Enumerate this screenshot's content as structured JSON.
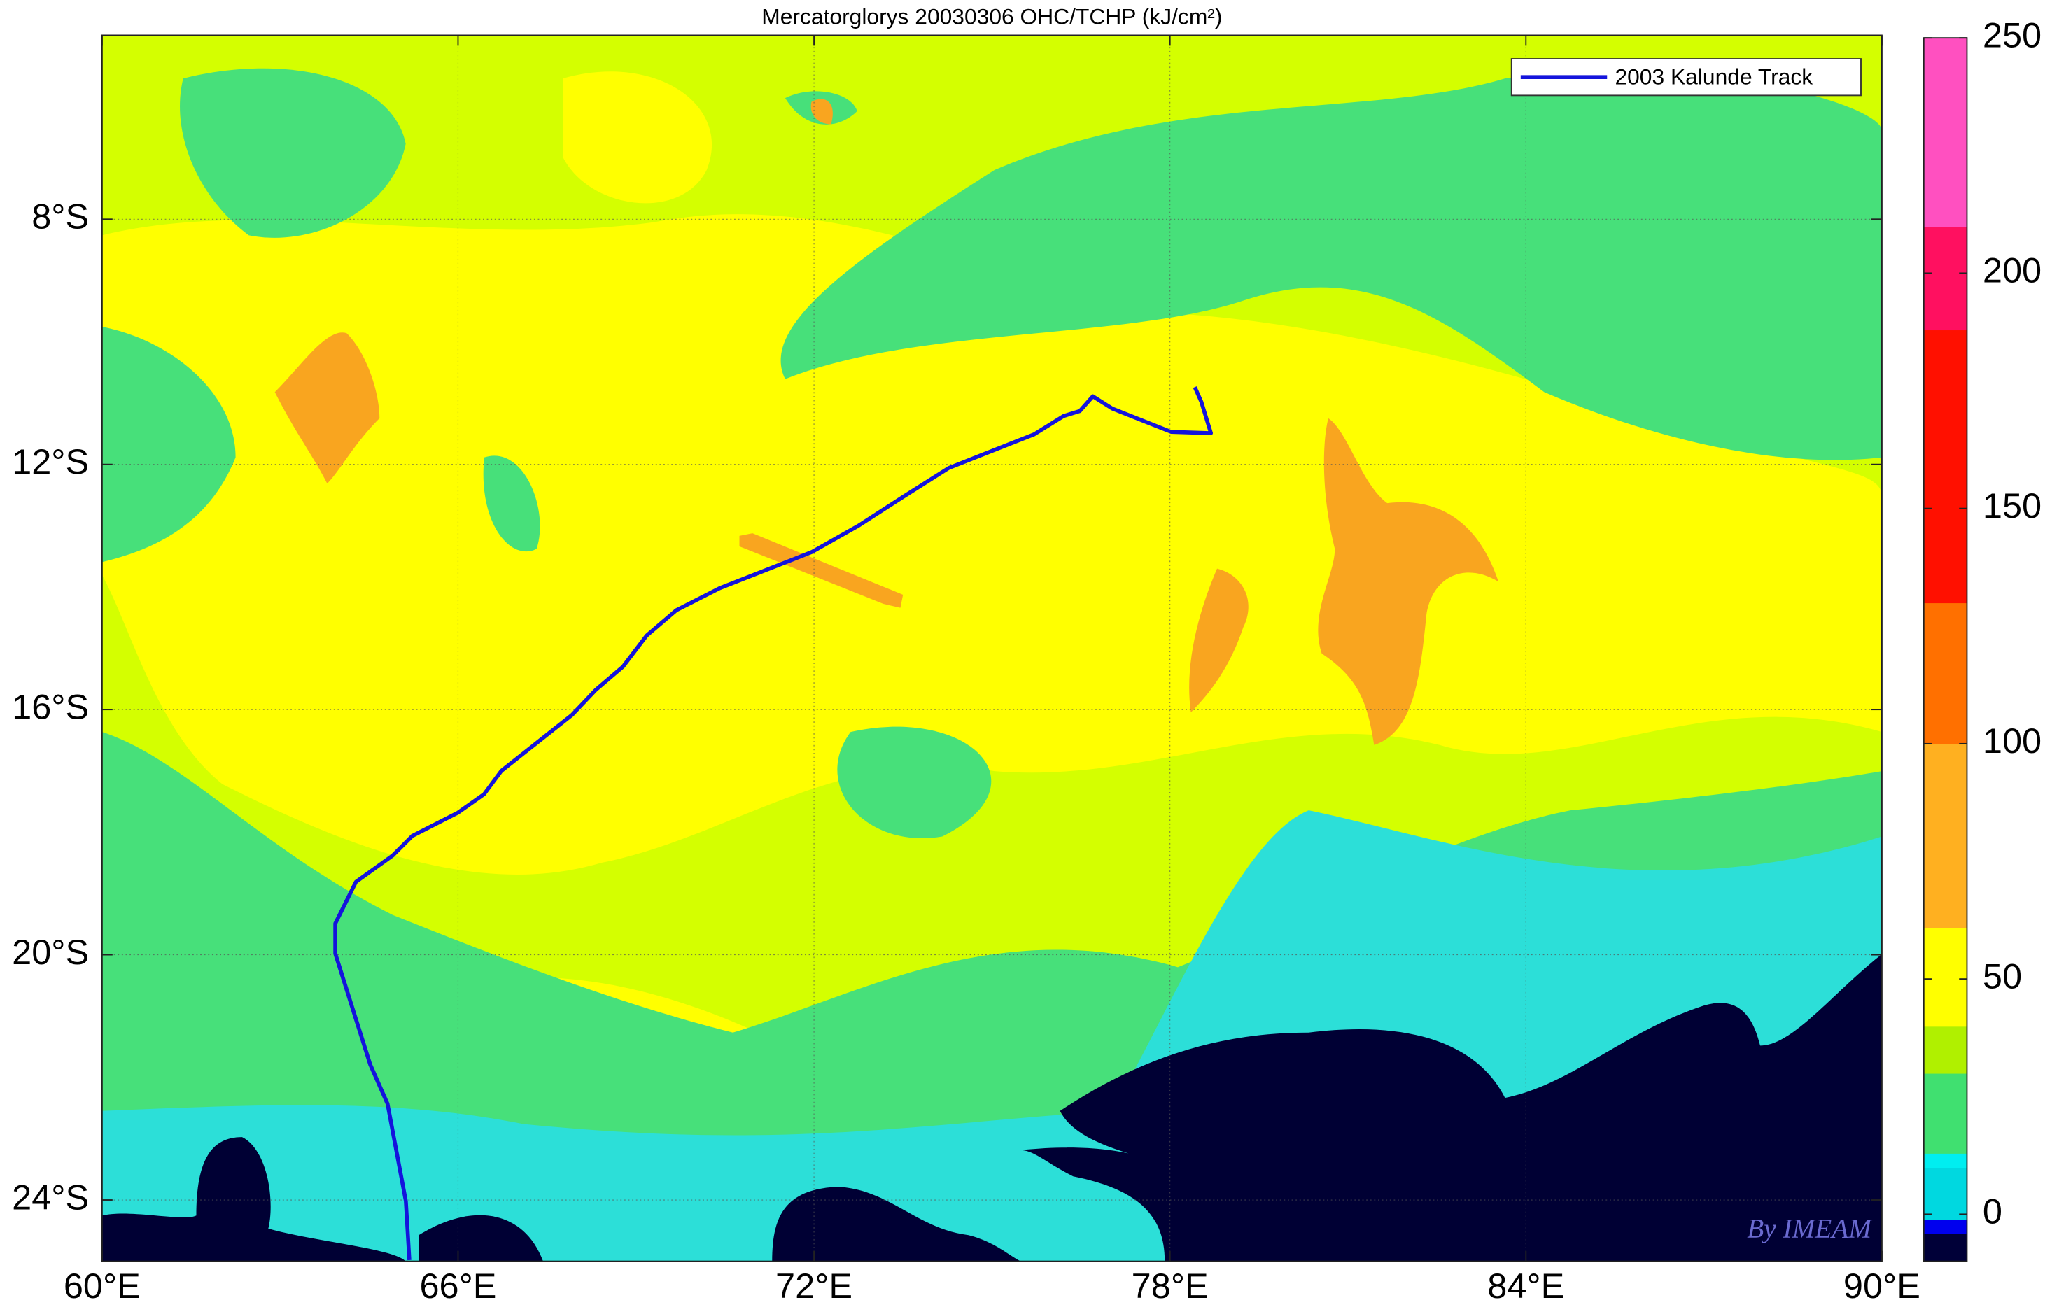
{
  "chart_data": {
    "type": "map",
    "title": "Mercatorglorys 20030306 OHC/TCHP (kJ/cm²)",
    "annotation": "By IMEAM",
    "xlim": [
      60,
      90
    ],
    "ylim": [
      -25,
      -5
    ],
    "xticks": [
      {
        "value": 60,
        "label": "60°E"
      },
      {
        "value": 66,
        "label": "66°E"
      },
      {
        "value": 72,
        "label": "72°E"
      },
      {
        "value": 78,
        "label": "78°E"
      },
      {
        "value": 84,
        "label": "84°E"
      },
      {
        "value": 90,
        "label": "90°E"
      }
    ],
    "yticks": [
      {
        "value": -8,
        "label": "8°S"
      },
      {
        "value": -12,
        "label": "12°S"
      },
      {
        "value": -16,
        "label": "16°S"
      },
      {
        "value": -20,
        "label": "20°S"
      },
      {
        "value": -24,
        "label": "24°S"
      }
    ],
    "grid": true,
    "legend": "upper right",
    "series": [
      {
        "name": "2003 Kalunde Track",
        "color": "#1414dc",
        "x": [
          65.18,
          65.12,
          64.81,
          64.52,
          63.93,
          63.93,
          64.28,
          64.9,
          65.23,
          66.0,
          66.44,
          66.73,
          67.92,
          68.32,
          68.78,
          69.18,
          69.68,
          70.41,
          71.96,
          72.75,
          73.5,
          74.27,
          75.71,
          76.21,
          76.48,
          76.7,
          77.03,
          78.02,
          78.69,
          78.53,
          78.42
        ],
        "values": [
          -24.98,
          -24.02,
          -22.43,
          -21.79,
          -19.98,
          -19.49,
          -18.81,
          -18.38,
          -18.06,
          -17.68,
          -17.38,
          -17.0,
          -16.09,
          -15.68,
          -15.3,
          -14.79,
          -14.38,
          -14.02,
          -13.43,
          -13.0,
          -12.53,
          -12.06,
          -11.51,
          -11.21,
          -11.13,
          -10.89,
          -11.09,
          -11.47,
          -11.49,
          -10.98,
          -10.74
        ]
      }
    ],
    "colorbar": {
      "clim": [
        -10,
        250
      ],
      "ticks": [
        0,
        50,
        100,
        150,
        200,
        250
      ],
      "stops": [
        {
          "value": -10,
          "color": "#000038"
        },
        {
          "value": -4,
          "color": "#0000ee"
        },
        {
          "value": -1,
          "color": "#00d8e0"
        },
        {
          "value": 10,
          "color": "#00eef0"
        },
        {
          "value": 13,
          "color": "#40e070"
        },
        {
          "value": 30,
          "color": "#b0f000"
        },
        {
          "value": 40,
          "color": "#ffff00"
        },
        {
          "value": 61,
          "color": "#ffb020"
        },
        {
          "value": 100,
          "color": "#ff7000"
        },
        {
          "value": 130,
          "color": "#ff1000"
        },
        {
          "value": 188,
          "color": "#ff1060"
        },
        {
          "value": 210,
          "color": "#ff50c0"
        },
        {
          "value": 250,
          "color": "#ff90f0"
        }
      ]
    }
  }
}
